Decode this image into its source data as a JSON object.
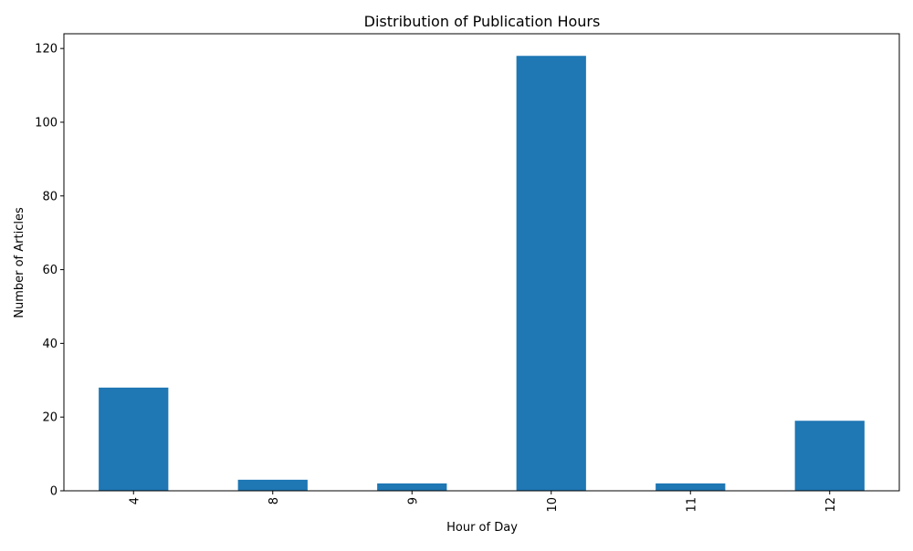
{
  "chart_data": {
    "type": "bar",
    "title": "Distribution of Publication Hours",
    "xlabel": "Hour of Day",
    "ylabel": "Number of Articles",
    "categories": [
      "4",
      "8",
      "9",
      "10",
      "11",
      "12"
    ],
    "values": [
      28,
      3,
      2,
      118,
      2,
      19
    ],
    "ylim": [
      0,
      124
    ],
    "yticks": [
      0,
      20,
      40,
      60,
      80,
      100,
      120
    ],
    "xtick_rotation": "vertical",
    "grid": false,
    "legend": "none",
    "bar_color": "#1f77b4",
    "axis_color": "#000000"
  }
}
